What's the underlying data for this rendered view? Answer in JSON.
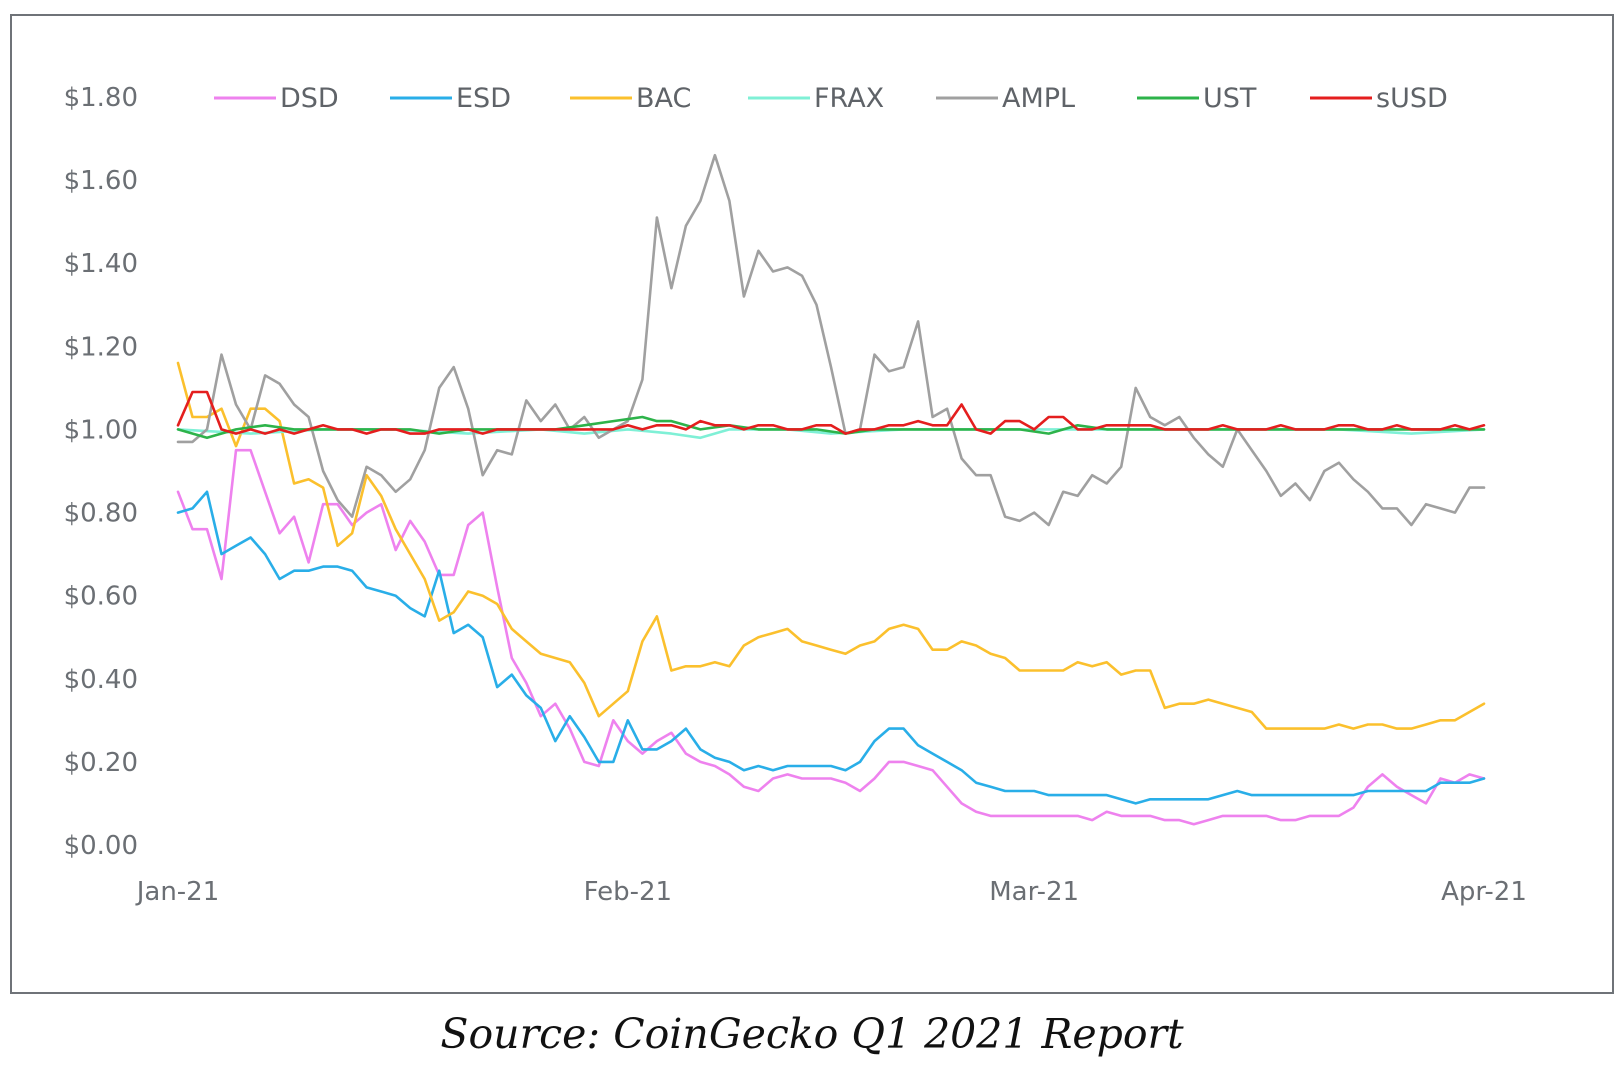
{
  "caption": "Source: CoinGecko Q1 2021 Report",
  "chart_data": {
    "type": "line",
    "title": "",
    "xlabel": "",
    "ylabel": "",
    "ylim": [
      0,
      1.8
    ],
    "xlim": [
      0,
      90
    ],
    "grid": false,
    "legend_position": "top",
    "y_ticks": [
      {
        "value": 1.8,
        "label": "$1.80"
      },
      {
        "value": 1.6,
        "label": "$1.60"
      },
      {
        "value": 1.4,
        "label": "$1.40"
      },
      {
        "value": 1.2,
        "label": "$1.20"
      },
      {
        "value": 1.0,
        "label": "$1.00"
      },
      {
        "value": 0.8,
        "label": "$0.80"
      },
      {
        "value": 0.6,
        "label": "$0.60"
      },
      {
        "value": 0.4,
        "label": "$0.40"
      },
      {
        "value": 0.2,
        "label": "$0.20"
      },
      {
        "value": 0.0,
        "label": "$0.00"
      }
    ],
    "x_ticks": [
      {
        "value": 0,
        "label": "Jan-21"
      },
      {
        "value": 31,
        "label": "Feb-21"
      },
      {
        "value": 59,
        "label": "Mar-21"
      },
      {
        "value": 90,
        "label": "Apr-21"
      }
    ],
    "series": [
      {
        "name": "DSD",
        "color": "#ee82ee",
        "x": [
          0,
          1,
          2,
          3,
          4,
          5,
          6,
          7,
          8,
          9,
          10,
          11,
          12,
          13,
          14,
          15,
          16,
          17,
          18,
          19,
          20,
          21,
          22,
          23,
          24,
          25,
          26,
          27,
          28,
          29,
          30,
          31,
          32,
          33,
          34,
          35,
          36,
          37,
          38,
          39,
          40,
          41,
          42,
          43,
          44,
          45,
          46,
          47,
          48,
          49,
          50,
          51,
          52,
          53,
          54,
          55,
          56,
          57,
          58,
          59,
          60,
          61,
          62,
          63,
          64,
          65,
          66,
          67,
          68,
          69,
          70,
          71,
          72,
          73,
          74,
          75,
          76,
          77,
          78,
          79,
          80,
          81,
          82,
          83,
          84,
          85,
          86,
          87,
          88,
          89,
          90
        ],
        "values": [
          0.85,
          0.76,
          0.76,
          0.64,
          0.95,
          0.95,
          0.85,
          0.75,
          0.79,
          0.68,
          0.82,
          0.82,
          0.77,
          0.8,
          0.82,
          0.71,
          0.78,
          0.73,
          0.65,
          0.65,
          0.77,
          0.8,
          0.62,
          0.45,
          0.39,
          0.31,
          0.34,
          0.28,
          0.2,
          0.19,
          0.3,
          0.25,
          0.22,
          0.25,
          0.27,
          0.22,
          0.2,
          0.19,
          0.17,
          0.14,
          0.13,
          0.16,
          0.17,
          0.16,
          0.16,
          0.16,
          0.15,
          0.13,
          0.16,
          0.2,
          0.2,
          0.19,
          0.18,
          0.14,
          0.1,
          0.08,
          0.07,
          0.07,
          0.07,
          0.07,
          0.07,
          0.07,
          0.07,
          0.06,
          0.08,
          0.07,
          0.07,
          0.07,
          0.06,
          0.06,
          0.05,
          0.06,
          0.07,
          0.07,
          0.07,
          0.07,
          0.06,
          0.06,
          0.07,
          0.07,
          0.07,
          0.09,
          0.14,
          0.17,
          0.14,
          0.12,
          0.1,
          0.16,
          0.15,
          0.17,
          0.16
        ]
      },
      {
        "name": "ESD",
        "color": "#29aee8",
        "x": [
          0,
          1,
          2,
          3,
          4,
          5,
          6,
          7,
          8,
          9,
          10,
          11,
          12,
          13,
          14,
          15,
          16,
          17,
          18,
          19,
          20,
          21,
          22,
          23,
          24,
          25,
          26,
          27,
          28,
          29,
          30,
          31,
          32,
          33,
          34,
          35,
          36,
          37,
          38,
          39,
          40,
          41,
          42,
          43,
          44,
          45,
          46,
          47,
          48,
          49,
          50,
          51,
          52,
          53,
          54,
          55,
          56,
          57,
          58,
          59,
          60,
          61,
          62,
          63,
          64,
          65,
          66,
          67,
          68,
          69,
          70,
          71,
          72,
          73,
          74,
          75,
          76,
          77,
          78,
          79,
          80,
          81,
          82,
          83,
          84,
          85,
          86,
          87,
          88,
          89,
          90
        ],
        "values": [
          0.8,
          0.81,
          0.85,
          0.7,
          0.72,
          0.74,
          0.7,
          0.64,
          0.66,
          0.66,
          0.67,
          0.67,
          0.66,
          0.62,
          0.61,
          0.6,
          0.57,
          0.55,
          0.66,
          0.51,
          0.53,
          0.5,
          0.38,
          0.41,
          0.36,
          0.33,
          0.25,
          0.31,
          0.26,
          0.2,
          0.2,
          0.3,
          0.23,
          0.23,
          0.25,
          0.28,
          0.23,
          0.21,
          0.2,
          0.18,
          0.19,
          0.18,
          0.19,
          0.19,
          0.19,
          0.19,
          0.18,
          0.2,
          0.25,
          0.28,
          0.28,
          0.24,
          0.22,
          0.2,
          0.18,
          0.15,
          0.14,
          0.13,
          0.13,
          0.13,
          0.12,
          0.12,
          0.12,
          0.12,
          0.12,
          0.11,
          0.1,
          0.11,
          0.11,
          0.11,
          0.11,
          0.11,
          0.12,
          0.13,
          0.12,
          0.12,
          0.12,
          0.12,
          0.12,
          0.12,
          0.12,
          0.12,
          0.13,
          0.13,
          0.13,
          0.13,
          0.13,
          0.15,
          0.15,
          0.15,
          0.16
        ]
      },
      {
        "name": "BAC",
        "color": "#fbc02d",
        "x": [
          0,
          1,
          2,
          3,
          4,
          5,
          6,
          7,
          8,
          9,
          10,
          11,
          12,
          13,
          14,
          15,
          16,
          17,
          18,
          19,
          20,
          21,
          22,
          23,
          24,
          25,
          26,
          27,
          28,
          29,
          30,
          31,
          32,
          33,
          34,
          35,
          36,
          37,
          38,
          39,
          40,
          41,
          42,
          43,
          44,
          45,
          46,
          47,
          48,
          49,
          50,
          51,
          52,
          53,
          54,
          55,
          56,
          57,
          58,
          59,
          60,
          61,
          62,
          63,
          64,
          65,
          66,
          67,
          68,
          69,
          70,
          71,
          72,
          73,
          74,
          75,
          76,
          77,
          78,
          79,
          80,
          81,
          82,
          83,
          84,
          85,
          86,
          87,
          88,
          89,
          90
        ],
        "values": [
          1.16,
          1.03,
          1.03,
          1.05,
          0.96,
          1.05,
          1.05,
          1.02,
          0.87,
          0.88,
          0.86,
          0.72,
          0.75,
          0.89,
          0.84,
          0.76,
          0.7,
          0.64,
          0.54,
          0.56,
          0.61,
          0.6,
          0.58,
          0.52,
          0.49,
          0.46,
          0.45,
          0.44,
          0.39,
          0.31,
          0.34,
          0.37,
          0.49,
          0.55,
          0.42,
          0.43,
          0.43,
          0.44,
          0.43,
          0.48,
          0.5,
          0.51,
          0.52,
          0.49,
          0.48,
          0.47,
          0.46,
          0.48,
          0.49,
          0.52,
          0.53,
          0.52,
          0.47,
          0.47,
          0.49,
          0.48,
          0.46,
          0.45,
          0.42,
          0.42,
          0.42,
          0.42,
          0.44,
          0.43,
          0.44,
          0.41,
          0.42,
          0.42,
          0.33,
          0.34,
          0.34,
          0.35,
          0.34,
          0.33,
          0.32,
          0.28,
          0.28,
          0.28,
          0.28,
          0.28,
          0.29,
          0.28,
          0.29,
          0.29,
          0.28,
          0.28,
          0.29,
          0.3,
          0.3,
          0.32,
          0.34
        ]
      },
      {
        "name": "FRAX",
        "color": "#7ff0d6",
        "x": [
          0,
          5,
          10,
          15,
          20,
          25,
          28,
          31,
          34,
          36,
          38,
          42,
          45,
          50,
          55,
          60,
          65,
          70,
          75,
          80,
          85,
          90
        ],
        "values": [
          1.0,
          0.99,
          1.0,
          1.0,
          0.99,
          1.0,
          0.99,
          1.0,
          0.99,
          0.98,
          1.0,
          1.0,
          0.99,
          1.0,
          1.0,
          1.0,
          1.0,
          1.0,
          1.0,
          1.0,
          0.99,
          1.0
        ]
      },
      {
        "name": "AMPL",
        "color": "#a0a0a0",
        "x": [
          0,
          1,
          2,
          3,
          4,
          5,
          6,
          7,
          8,
          9,
          10,
          11,
          12,
          13,
          14,
          15,
          16,
          17,
          18,
          19,
          20,
          21,
          22,
          23,
          24,
          25,
          26,
          27,
          28,
          29,
          30,
          31,
          32,
          33,
          34,
          35,
          36,
          37,
          38,
          39,
          40,
          41,
          42,
          43,
          44,
          45,
          46,
          47,
          48,
          49,
          50,
          51,
          52,
          53,
          54,
          55,
          56,
          57,
          58,
          59,
          60,
          61,
          62,
          63,
          64,
          65,
          66,
          67,
          68,
          69,
          70,
          71,
          72,
          73,
          74,
          75,
          76,
          77,
          78,
          79,
          80,
          81,
          82,
          83,
          84,
          85,
          86,
          87,
          88,
          89,
          90
        ],
        "values": [
          0.97,
          0.97,
          1.0,
          1.18,
          1.06,
          1.0,
          1.13,
          1.11,
          1.06,
          1.03,
          0.9,
          0.83,
          0.79,
          0.91,
          0.89,
          0.85,
          0.88,
          0.95,
          1.1,
          1.15,
          1.05,
          0.89,
          0.95,
          0.94,
          1.07,
          1.02,
          1.06,
          1.0,
          1.03,
          0.98,
          1.0,
          1.02,
          1.12,
          1.51,
          1.34,
          1.49,
          1.55,
          1.66,
          1.55,
          1.32,
          1.43,
          1.38,
          1.39,
          1.37,
          1.3,
          1.15,
          0.99,
          1.0,
          1.18,
          1.14,
          1.15,
          1.26,
          1.03,
          1.05,
          0.93,
          0.89,
          0.89,
          0.79,
          0.78,
          0.8,
          0.77,
          0.85,
          0.84,
          0.89,
          0.87,
          0.91,
          1.1,
          1.03,
          1.01,
          1.03,
          0.98,
          0.94,
          0.91,
          1.0,
          0.95,
          0.9,
          0.84,
          0.87,
          0.83,
          0.9,
          0.92,
          0.88,
          0.85,
          0.81,
          0.81,
          0.77,
          0.82,
          0.81,
          0.8,
          0.86,
          0.86
        ]
      },
      {
        "name": "UST",
        "color": "#2db34a",
        "x": [
          0,
          2,
          4,
          6,
          8,
          10,
          12,
          14,
          16,
          18,
          20,
          22,
          24,
          26,
          28,
          30,
          32,
          33,
          34,
          35,
          36,
          38,
          40,
          42,
          44,
          46,
          48,
          50,
          52,
          54,
          56,
          58,
          60,
          62,
          64,
          66,
          68,
          70,
          72,
          74,
          76,
          78,
          80,
          82,
          84,
          86,
          88,
          90
        ],
        "values": [
          1.0,
          0.98,
          1.0,
          1.01,
          1.0,
          1.0,
          1.0,
          1.0,
          1.0,
          0.99,
          1.0,
          1.0,
          1.0,
          1.0,
          1.01,
          1.02,
          1.03,
          1.02,
          1.02,
          1.01,
          1.0,
          1.01,
          1.0,
          1.0,
          1.0,
          0.99,
          1.0,
          1.0,
          1.0,
          1.0,
          1.0,
          1.0,
          0.99,
          1.01,
          1.0,
          1.0,
          1.0,
          1.0,
          1.0,
          1.0,
          1.0,
          1.0,
          1.0,
          1.0,
          1.0,
          1.0,
          1.0,
          1.0
        ]
      },
      {
        "name": "sUSD",
        "color": "#e41e1e",
        "x": [
          0,
          1,
          2,
          3,
          4,
          5,
          6,
          7,
          8,
          9,
          10,
          11,
          12,
          13,
          14,
          15,
          16,
          17,
          18,
          19,
          20,
          21,
          22,
          23,
          24,
          25,
          26,
          27,
          28,
          29,
          30,
          31,
          32,
          33,
          34,
          35,
          36,
          37,
          38,
          39,
          40,
          41,
          42,
          43,
          44,
          45,
          46,
          47,
          48,
          49,
          50,
          51,
          52,
          53,
          54,
          55,
          56,
          57,
          58,
          59,
          60,
          61,
          62,
          63,
          64,
          65,
          66,
          67,
          68,
          69,
          70,
          71,
          72,
          73,
          74,
          75,
          76,
          77,
          78,
          79,
          80,
          81,
          82,
          83,
          84,
          85,
          86,
          87,
          88,
          89,
          90
        ],
        "values": [
          1.01,
          1.09,
          1.09,
          1.0,
          0.99,
          1.0,
          0.99,
          1.0,
          0.99,
          1.0,
          1.01,
          1.0,
          1.0,
          0.99,
          1.0,
          1.0,
          0.99,
          0.99,
          1.0,
          1.0,
          1.0,
          0.99,
          1.0,
          1.0,
          1.0,
          1.0,
          1.0,
          1.0,
          1.0,
          1.0,
          1.0,
          1.01,
          1.0,
          1.01,
          1.01,
          1.0,
          1.02,
          1.01,
          1.01,
          1.0,
          1.01,
          1.01,
          1.0,
          1.0,
          1.01,
          1.01,
          0.99,
          1.0,
          1.0,
          1.01,
          1.01,
          1.02,
          1.01,
          1.01,
          1.06,
          1.0,
          0.99,
          1.02,
          1.02,
          1.0,
          1.03,
          1.03,
          1.0,
          1.0,
          1.01,
          1.01,
          1.01,
          1.01,
          1.0,
          1.0,
          1.0,
          1.0,
          1.01,
          1.0,
          1.0,
          1.0,
          1.01,
          1.0,
          1.0,
          1.0,
          1.01,
          1.01,
          1.0,
          1.0,
          1.01,
          1.0,
          1.0,
          1.0,
          1.01,
          1.0,
          1.01
        ]
      }
    ]
  }
}
